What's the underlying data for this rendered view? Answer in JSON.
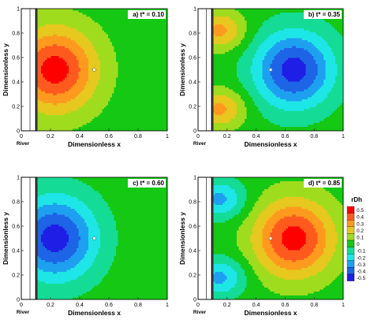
{
  "chart_data": [
    {
      "type": "heatmap",
      "panel_label": "a) t* = 0.10",
      "xlabel": "Dimensionless x",
      "ylabel": "Dimensionless y",
      "river_label": "River",
      "xlim": [
        0,
        1
      ],
      "ylim": [
        0,
        1
      ],
      "x_ticks": [
        "0",
        "0.2",
        "0.4",
        "0.6",
        "0.8",
        "1"
      ],
      "y_ticks": [
        "0",
        "0.2",
        "0.4",
        "0.6",
        "0.8",
        "1"
      ],
      "well": {
        "x": 0.5,
        "y": 0.5
      },
      "features": [
        {
          "x": 0.23,
          "y": 0.5,
          "peak": 0.5,
          "sx": 0.2,
          "sy": 0.24
        }
      ]
    },
    {
      "type": "heatmap",
      "panel_label": "b) t* = 0.35",
      "xlabel": "Dimensionless x",
      "ylabel": "Dimensionless y",
      "river_label": "River",
      "xlim": [
        0,
        1
      ],
      "ylim": [
        0,
        1
      ],
      "x_ticks": [
        "0",
        "0.2",
        "0.4",
        "0.6",
        "0.8",
        "1"
      ],
      "y_ticks": [
        "0",
        "0.2",
        "0.4",
        "0.6",
        "0.8",
        "1"
      ],
      "well": {
        "x": 0.5,
        "y": 0.5
      },
      "features": [
        {
          "x": 0.15,
          "y": 0.82,
          "peak": 0.28,
          "sx": 0.12,
          "sy": 0.11
        },
        {
          "x": 0.15,
          "y": 0.18,
          "peak": 0.28,
          "sx": 0.12,
          "sy": 0.11
        },
        {
          "x": 0.66,
          "y": 0.5,
          "peak": -0.5,
          "sx": 0.19,
          "sy": 0.22
        }
      ]
    },
    {
      "type": "heatmap",
      "panel_label": "c) t* = 0.60",
      "xlabel": "Dimensionless x",
      "ylabel": "Dimensionless y",
      "river_label": "River",
      "xlim": [
        0,
        1
      ],
      "ylim": [
        0,
        1
      ],
      "x_ticks": [
        "0",
        "0.2",
        "0.4",
        "0.6",
        "0.8",
        "1"
      ],
      "y_ticks": [
        "0",
        "0.2",
        "0.4",
        "0.6",
        "0.8",
        "1"
      ],
      "well": {
        "x": 0.5,
        "y": 0.5
      },
      "features": [
        {
          "x": 0.23,
          "y": 0.5,
          "peak": -0.5,
          "sx": 0.2,
          "sy": 0.24
        }
      ]
    },
    {
      "type": "heatmap",
      "panel_label": "d) t* = 0.85",
      "xlabel": "Dimensionless x",
      "ylabel": "Dimensionless y",
      "river_label": "River",
      "xlim": [
        0,
        1
      ],
      "ylim": [
        0,
        1
      ],
      "x_ticks": [
        "0",
        "0.2",
        "0.4",
        "0.6",
        "0.8",
        "1"
      ],
      "y_ticks": [
        "0",
        "0.2",
        "0.4",
        "0.6",
        "0.8",
        "1"
      ],
      "well": {
        "x": 0.5,
        "y": 0.5
      },
      "features": [
        {
          "x": 0.15,
          "y": 0.82,
          "peak": -0.28,
          "sx": 0.12,
          "sy": 0.11
        },
        {
          "x": 0.15,
          "y": 0.18,
          "peak": -0.28,
          "sx": 0.12,
          "sy": 0.11
        },
        {
          "x": 0.66,
          "y": 0.5,
          "peak": 0.5,
          "sx": 0.19,
          "sy": 0.22
        }
      ]
    }
  ],
  "legend": {
    "title": "rDh",
    "levels": [
      "0.5",
      "0.4",
      "0.3",
      "0.2",
      "0.1",
      "0",
      "-0.1",
      "-0.2",
      "-0.3",
      "-0.4",
      "-0.5"
    ],
    "colors": [
      "#ff0000",
      "#ff5a1e",
      "#ff9a1e",
      "#e6c81e",
      "#a0dc1e",
      "#14c814",
      "#14dc96",
      "#1ee6e6",
      "#1ea0f0",
      "#1e64e6",
      "#1e1ee6"
    ]
  }
}
